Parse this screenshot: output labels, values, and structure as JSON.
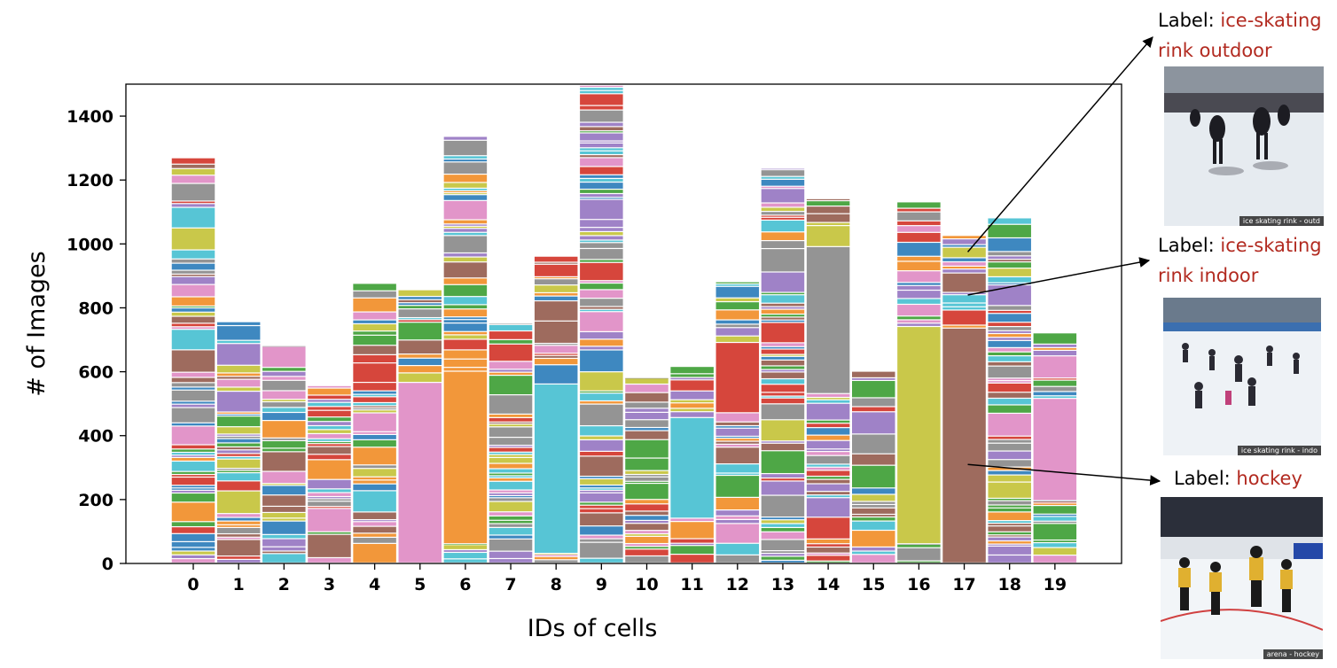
{
  "chart_data": {
    "type": "bar",
    "subtype": "stacked",
    "xlabel": "IDs of cells",
    "ylabel": "# of Images",
    "categories": [
      "0",
      "1",
      "2",
      "3",
      "4",
      "5",
      "6",
      "7",
      "8",
      "9",
      "10",
      "11",
      "12",
      "13",
      "14",
      "15",
      "16",
      "17",
      "18",
      "19"
    ],
    "totals": [
      1268,
      755,
      680,
      555,
      875,
      855,
      1335,
      750,
      960,
      1495,
      580,
      615,
      880,
      1235,
      1140,
      600,
      1130,
      1025,
      1080,
      720
    ],
    "ylim": [
      0,
      1500
    ],
    "yticks": [
      0,
      200,
      400,
      600,
      800,
      1000,
      1200,
      1400
    ],
    "grid": false,
    "legend": "none",
    "dominant_segments": [
      {
        "bar": "5",
        "from": 0,
        "to": 565,
        "color": "#e295c9"
      },
      {
        "bar": "6",
        "from": 60,
        "to": 600,
        "color": "#f2973a"
      },
      {
        "bar": "8",
        "from": 30,
        "to": 560,
        "color": "#57c5d5"
      },
      {
        "bar": "11",
        "from": 140,
        "to": 455,
        "color": "#57c5d5"
      },
      {
        "bar": "12",
        "from": 470,
        "to": 690,
        "color": "#d6463c"
      },
      {
        "bar": "14",
        "from": 530,
        "to": 990,
        "color": "#949494"
      },
      {
        "bar": "16",
        "from": 60,
        "to": 740,
        "color": "#c9c84a"
      },
      {
        "bar": "17",
        "from": 0,
        "to": 735,
        "color": "#9e6b5e"
      },
      {
        "bar": "19",
        "from": 195,
        "to": 515,
        "color": "#e295c9"
      }
    ]
  },
  "palette": [
    "#f2973a",
    "#57c5d5",
    "#e295c9",
    "#c9c84a",
    "#9e6b5e",
    "#3e88c0",
    "#4ea746",
    "#d6463c",
    "#9f82c7",
    "#949494"
  ],
  "annotations": [
    {
      "prefix": "Label: ",
      "line1": "ice-skating",
      "line2": "rink outdoor",
      "caption": "ice skating rink - outd",
      "points_to_bar": "17",
      "points_to_value": 975
    },
    {
      "prefix": "Label: ",
      "line1": "ice-skating",
      "line2": "rink indoor",
      "caption": "ice skating rink - indo",
      "points_to_bar": "17",
      "points_to_value": 840
    },
    {
      "prefix": "Label: ",
      "line1": "hockey",
      "caption": "arena - hockey",
      "points_to_bar": "17",
      "points_to_value": 310
    }
  ]
}
